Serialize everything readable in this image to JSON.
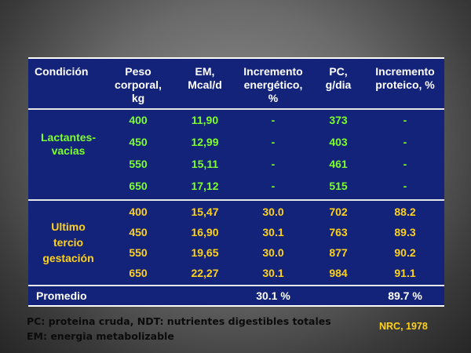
{
  "headers": {
    "condicion": "Condición",
    "peso": [
      "Peso",
      "corporal,",
      "kg"
    ],
    "em": [
      "EM,",
      "Mcal/d"
    ],
    "inc_energetico": [
      "Incremento",
      "energético,",
      "%"
    ],
    "pc": [
      "PC,",
      "g/dia"
    ],
    "inc_proteico": [
      "Incremento",
      "proteico, %"
    ]
  },
  "group1": {
    "label": [
      "Lactantes-",
      "vacias"
    ],
    "rows": [
      {
        "peso": "400",
        "em": "11,90",
        "inc_e": "-",
        "pc": "373",
        "inc_p": "-"
      },
      {
        "peso": "450",
        "em": "12,99",
        "inc_e": "-",
        "pc": "403",
        "inc_p": "-"
      },
      {
        "peso": "550",
        "em": "15,11",
        "inc_e": "-",
        "pc": "461",
        "inc_p": "-"
      },
      {
        "peso": "650",
        "em": "17,12",
        "inc_e": "-",
        "pc": "515",
        "inc_p": "-"
      }
    ]
  },
  "group2": {
    "label": [
      "Ultimo",
      "tercio",
      "gestación"
    ],
    "rows": [
      {
        "peso": "400",
        "em": "15,47",
        "inc_e": "30.0",
        "pc": "702",
        "inc_p": "88.2"
      },
      {
        "peso": "450",
        "em": "16,90",
        "inc_e": "30.1",
        "pc": "763",
        "inc_p": "89.3"
      },
      {
        "peso": "550",
        "em": "19,65",
        "inc_e": "30.0",
        "pc": "877",
        "inc_p": "90.2"
      },
      {
        "peso": "650",
        "em": "22,27",
        "inc_e": "30.1",
        "pc": "984",
        "inc_p": "91.1"
      }
    ]
  },
  "promedio": {
    "label": "Promedio",
    "inc_e": "30.1 %",
    "inc_p": "89.7 %"
  },
  "footnotes": [
    "PC: proteina cruda, NDT: nutrientes digestibles totales",
    "EM: energia metabolizable"
  ],
  "source": "NRC, 1978"
}
